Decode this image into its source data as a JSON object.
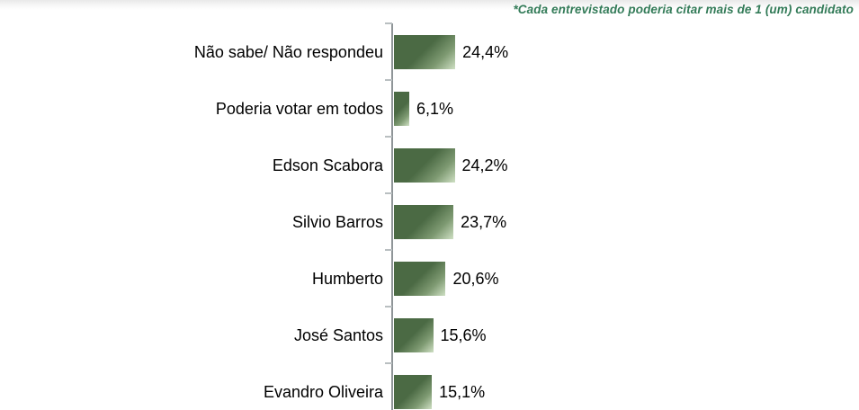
{
  "annotation": {
    "text": "*Cada entrevistado poderia citar mais de 1 (um) candidato",
    "color": "#337b58"
  },
  "chart_data": {
    "type": "bar",
    "orientation": "horizontal",
    "title": "",
    "xlabel": "",
    "ylabel": "",
    "categories": [
      "Não sabe/ Não respondeu",
      "Poderia votar em todos",
      "Edson Scabora",
      "Silvio Barros",
      "Humberto",
      "José Santos",
      "Evandro Oliveira"
    ],
    "values": [
      24.4,
      6.1,
      24.2,
      23.7,
      20.6,
      15.6,
      15.1
    ],
    "value_labels": [
      "24,4%",
      "6,1%",
      "24,2%",
      "23,7%",
      "20,6%",
      "15,6%",
      "15,1%"
    ],
    "grid": false,
    "legend": false,
    "axis_line_color": "#8f9598",
    "tick_color": "#b9bfc1",
    "bar_color_dark": "#4b6a44",
    "bar_color_mid": "#7e9a72",
    "bar_color_light": "#cfe0c4"
  }
}
